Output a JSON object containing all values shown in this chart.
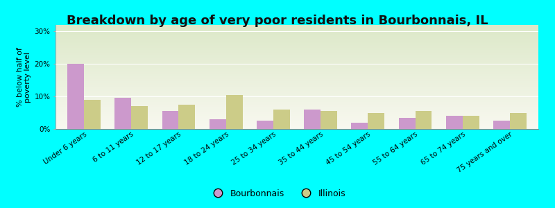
{
  "title": "Breakdown by age of very poor residents in Bourbonnais, IL",
  "ylabel": "% below half of\npoverty level",
  "categories": [
    "Under 6 years",
    "6 to 11 years",
    "12 to 17 years",
    "18 to 24 years",
    "25 to 34 years",
    "35 to 44 years",
    "45 to 54 years",
    "55 to 64 years",
    "65 to 74 years",
    "75 years and over"
  ],
  "bourbonnais": [
    20,
    9.5,
    5.5,
    3,
    2.5,
    6,
    2,
    3.5,
    4,
    2.5
  ],
  "illinois": [
    9,
    7,
    7.5,
    10.5,
    6,
    5.5,
    5,
    5.5,
    4,
    5
  ],
  "bourbonnais_color": "#cc99cc",
  "illinois_color": "#cccc88",
  "background_outer": "#00ffff",
  "background_inner_top": "#dce8c8",
  "background_inner_bottom": "#f8f8f0",
  "ylim": [
    0,
    32
  ],
  "yticks": [
    0,
    10,
    20,
    30
  ],
  "ytick_labels": [
    "0%",
    "10%",
    "20%",
    "30%"
  ],
  "bar_width": 0.35,
  "title_fontsize": 13,
  "axis_fontsize": 8,
  "tick_fontsize": 7.5,
  "legend_labels": [
    "Bourbonnais",
    "Illinois"
  ]
}
